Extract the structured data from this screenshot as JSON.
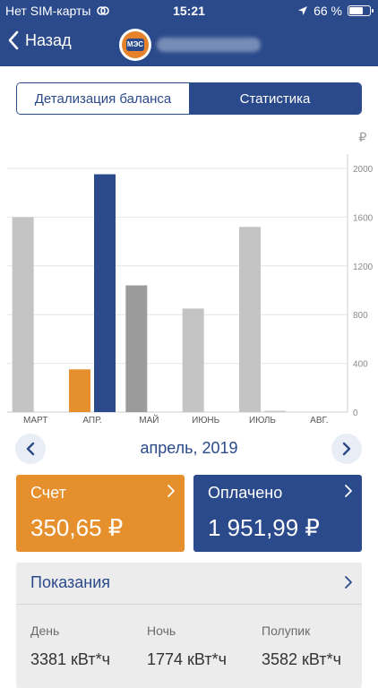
{
  "status_bar": {
    "carrier": "Нет SIM-карты",
    "time": "15:21",
    "battery": "66 %",
    "battery_level": 0.66
  },
  "nav": {
    "back_label": "Назад",
    "logo_text": "МЭС"
  },
  "segments": {
    "left": "Детализация баланса",
    "right": "Статистика",
    "selected": "right"
  },
  "chart_data": {
    "type": "bar",
    "unit": "₽",
    "categories": [
      "МАРТ",
      "АПР.",
      "МАЙ",
      "ИЮНЬ",
      "ИЮЛЬ",
      "АВГ."
    ],
    "series": [
      {
        "name": "",
        "values": [
          1600,
          350.65,
          1040,
          850,
          1520,
          0
        ],
        "colors": [
          "#c4c4c4",
          "#e6902d",
          "#9b9b9b",
          "#c4c4c4",
          "#c4c4c4",
          "#c4c4c4"
        ]
      },
      {
        "name": "",
        "values": [
          0,
          1951.99,
          0,
          0,
          10,
          0
        ],
        "colors": [
          "#2b4a8b",
          "#2b4a8b",
          "#2b4a8b",
          "#2b4a8b",
          "#c4c4c4",
          "#2b4a8b"
        ]
      }
    ],
    "yticks": [
      "0",
      "400",
      "800",
      "1200",
      "1600",
      "2000"
    ],
    "ylim": [
      0,
      2000
    ],
    "grid": true
  },
  "month_nav": {
    "label": "апрель, 2019"
  },
  "cards": {
    "bill_title": "Счет",
    "bill_amount": "350,65 ₽",
    "paid_title": "Оплачено",
    "paid_amount": "1 951,99 ₽"
  },
  "readings": {
    "title": "Показания",
    "items": [
      {
        "label": "День",
        "value": "3381 кВт*ч"
      },
      {
        "label": "Ночь",
        "value": "1774 кВт*ч"
      },
      {
        "label": "Полупик",
        "value": "3582 кВт*ч"
      }
    ]
  },
  "colors": {
    "primary": "#2b4a8b",
    "accent": "#e6902d"
  }
}
